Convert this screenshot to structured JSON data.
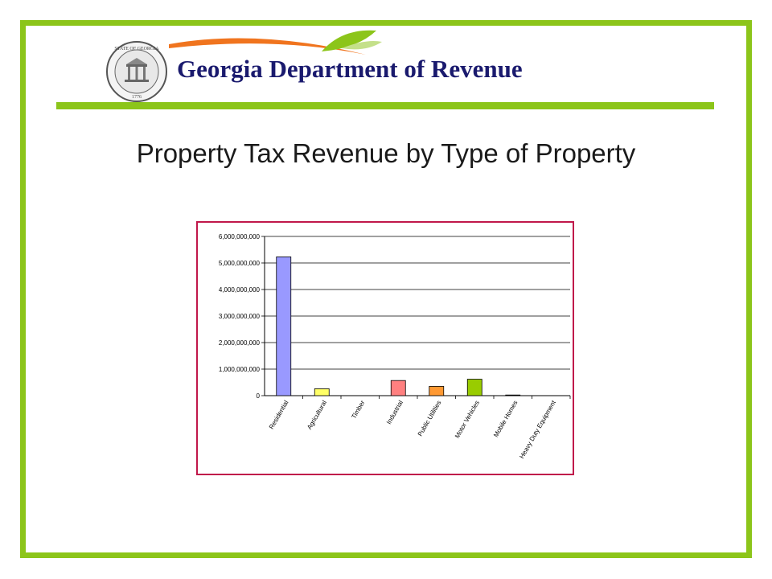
{
  "header": {
    "org_name": "Georgia Department of Revenue",
    "seal_text_top": "STATE OF GEORGIA",
    "seal_year": "1776"
  },
  "slide": {
    "title": "Property Tax Revenue by Type of Property"
  },
  "colors": {
    "frame": "#8cc51a",
    "chart_border": "#c0174a",
    "title_text": "#1a1a6e"
  },
  "chart_data": {
    "type": "bar",
    "categories": [
      "Residential",
      "Agricultural",
      "Timber",
      "Industrial",
      "Public Utilities",
      "Motor Vehicles",
      "Mobile Homes",
      "Heavy Duty Equipment"
    ],
    "values": [
      5230000000,
      260000000,
      0,
      570000000,
      350000000,
      620000000,
      25000000,
      0
    ],
    "bar_colors": [
      "#9999ff",
      "#ffff66",
      "#cccccc",
      "#ff8080",
      "#ff9933",
      "#99cc00",
      "#333333",
      "#cccccc"
    ],
    "ylim": [
      0,
      6000000000
    ],
    "y_ticks": [
      "0",
      "1,000,000,000",
      "2,000,000,000",
      "3,000,000,000",
      "4,000,000,000",
      "5,000,000,000",
      "6,000,000,000"
    ],
    "grid": true,
    "title": "",
    "xlabel": "",
    "ylabel": ""
  }
}
